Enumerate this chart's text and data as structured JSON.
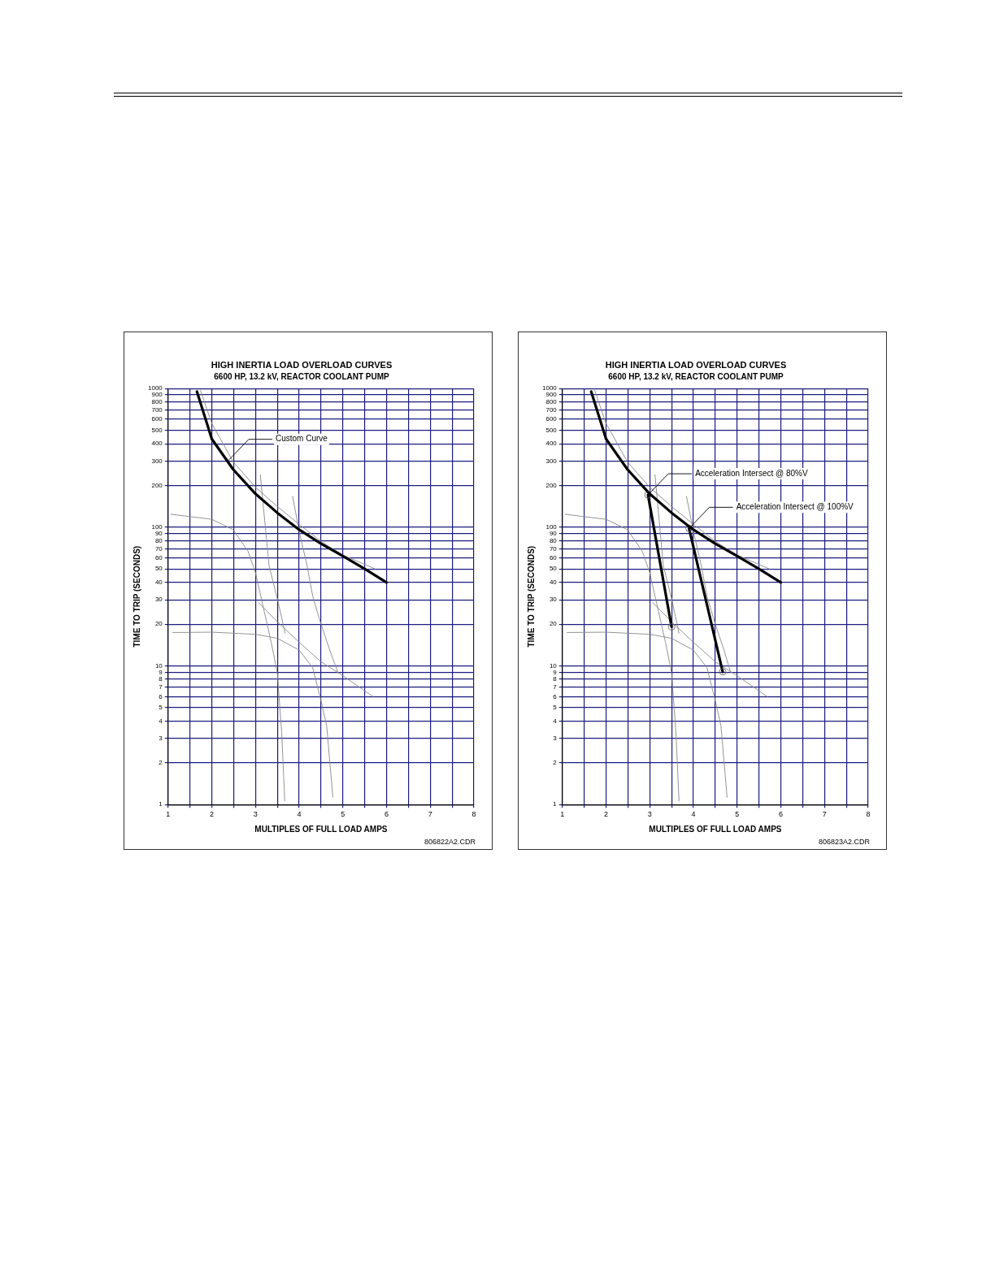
{
  "chart_data": [
    {
      "type": "line",
      "title": "HIGH INERTIA LOAD OVERLOAD CURVES",
      "subtitle": "6600 HP, 13.2 kV, REACTOR COOLANT PUMP",
      "xlabel": "MULTIPLES OF FULL LOAD AMPS",
      "ylabel": "TIME TO TRIP (SECONDS)",
      "log": "y",
      "grid": true,
      "legend": false,
      "line_style": "solid",
      "xlim": [
        1,
        8
      ],
      "xticks": [
        1,
        {
          "value": 1.5,
          "label": null
        },
        2,
        {
          "value": 2.5,
          "label": null
        },
        3,
        {
          "value": 3.5,
          "label": null
        },
        4,
        {
          "value": 4.5,
          "label": null
        },
        5,
        {
          "value": 5.5,
          "label": null
        },
        6,
        {
          "value": 6.5,
          "label": null
        },
        7,
        {
          "value": 7.5,
          "label": null
        },
        8
      ],
      "ylim": [
        1,
        1000
      ],
      "yticks": [
        1,
        2,
        3,
        4,
        5,
        6,
        7,
        8,
        9,
        10,
        20,
        30,
        40,
        50,
        60,
        70,
        80,
        90,
        100,
        200,
        300,
        400,
        500,
        600,
        700,
        800,
        900,
        1000
      ],
      "series": [
        {
          "color": "#000000",
          "marker": "none",
          "x": [
            1.66,
            2.0,
            2.49,
            3.0,
            3.5,
            4.0,
            4.5,
            5.0,
            5.5,
            6.0
          ],
          "values": [
            950,
            433,
            261,
            174,
            127,
            96,
            76,
            62,
            50,
            40
          ]
        },
        {
          "color": "#888888",
          "marker": "none",
          "x": [
            1.74,
            2.0,
            2.49,
            3.0,
            3.5,
            4.0,
            4.5,
            5.0,
            5.74
          ],
          "values": [
            970,
            560,
            296,
            194,
            141,
            105,
            79,
            63,
            50
          ]
        },
        {
          "color": "#888888",
          "marker": "none",
          "x": [
            1.06,
            2.0,
            2.49,
            2.83,
            3.0,
            3.2,
            3.36,
            3.5,
            3.6,
            3.67
          ],
          "values": [
            124,
            114,
            96,
            67,
            47,
            24.7,
            14.8,
            8.9,
            3.3,
            1.06
          ]
        },
        {
          "color": "#888888",
          "marker": "none",
          "x": [
            3.11,
            3.31,
            3.5,
            3.68
          ],
          "values": [
            239,
            53,
            30.5,
            17.2
          ]
        },
        {
          "color": "#888888",
          "marker": "none",
          "x": [
            3.85,
            4.01,
            4.18,
            4.31,
            4.5,
            4.7,
            4.89
          ],
          "values": [
            167,
            90,
            53,
            31.8,
            20,
            13,
            8.9
          ]
        },
        {
          "color": "#888888",
          "marker": "none",
          "x": [
            3.07,
            3.5,
            4.0,
            4.5,
            5.0,
            5.69
          ],
          "values": [
            28.6,
            20.8,
            14.8,
            10.7,
            8.5,
            6.0
          ]
        },
        {
          "color": "#888888",
          "marker": "none",
          "x": [
            1.1,
            2.0,
            3.0,
            3.5,
            4.0,
            4.31,
            4.5,
            4.63,
            4.77
          ],
          "values": [
            17.4,
            17.5,
            16.9,
            15.8,
            13.0,
            9.7,
            5.6,
            3.7,
            1.13
          ]
        }
      ],
      "annotations": [
        {
          "text": "Custom Curve",
          "x": 2.38,
          "y": 303
        },
        "806822A2.CDR"
      ]
    },
    {
      "type": "line",
      "title": "HIGH INERTIA LOAD OVERLOAD CURVES",
      "subtitle": "6600 HP, 13.2 kV, REACTOR COOLANT PUMP",
      "xlabel": "MULTIPLES OF FULL LOAD AMPS",
      "ylabel": "TIME TO TRIP (SECONDS)",
      "log": "y",
      "grid": true,
      "legend": false,
      "line_style": "solid",
      "xlim": [
        1,
        8
      ],
      "xticks": [
        1,
        {
          "value": 1.5,
          "label": null
        },
        2,
        {
          "value": 2.5,
          "label": null
        },
        3,
        {
          "value": 3.5,
          "label": null
        },
        4,
        {
          "value": 4.5,
          "label": null
        },
        5,
        {
          "value": 5.5,
          "label": null
        },
        6,
        {
          "value": 6.5,
          "label": null
        },
        7,
        {
          "value": 7.5,
          "label": null
        },
        8
      ],
      "ylim": [
        1,
        1000
      ],
      "yticks": [
        1,
        2,
        3,
        4,
        5,
        6,
        7,
        8,
        9,
        10,
        20,
        30,
        40,
        50,
        60,
        70,
        80,
        90,
        100,
        200,
        300,
        400,
        500,
        600,
        700,
        800,
        900,
        1000
      ],
      "series": [
        {
          "color": "#000000",
          "marker": "none",
          "x": [
            1.66,
            2.0,
            2.49,
            3.0,
            3.5,
            4.0,
            4.5,
            5.0,
            5.5,
            6.0
          ],
          "values": [
            950,
            433,
            261,
            174,
            127,
            96,
            76,
            62,
            50,
            40
          ]
        },
        {
          "color": "#000000",
          "marker": "circle",
          "x": [
            2.96,
            3.5
          ],
          "values": [
            171,
            19.1
          ]
        },
        {
          "color": "#000000",
          "marker": "circle",
          "x": [
            3.9,
            4.67
          ],
          "values": [
            98,
            9.07
          ]
        },
        {
          "color": "#888888",
          "marker": "none",
          "x": [
            1.74,
            2.0,
            2.49,
            3.0,
            3.5,
            4.0,
            4.5,
            5.0,
            5.74
          ],
          "values": [
            970,
            560,
            296,
            194,
            141,
            105,
            79,
            63,
            50
          ]
        },
        {
          "color": "#888888",
          "marker": "none",
          "x": [
            1.06,
            2.0,
            2.49,
            2.83,
            3.0,
            3.2,
            3.36,
            3.5,
            3.6,
            3.67
          ],
          "values": [
            124,
            114,
            96,
            67,
            47,
            24.7,
            14.8,
            8.9,
            3.3,
            1.06
          ]
        },
        {
          "color": "#888888",
          "marker": "none",
          "x": [
            3.12,
            3.31,
            3.5,
            3.67
          ],
          "values": [
            239,
            53,
            30.5,
            17.2
          ]
        },
        {
          "color": "#888888",
          "marker": "none",
          "x": [
            3.84,
            4.01,
            4.18,
            4.31,
            4.5,
            4.7,
            4.85
          ],
          "values": [
            167,
            90,
            53,
            31.8,
            20,
            13,
            9.0
          ]
        },
        {
          "color": "#888888",
          "marker": "none",
          "x": [
            3.07,
            3.5,
            4.0,
            4.5,
            5.0,
            5.69
          ],
          "values": [
            28.6,
            20.8,
            14.8,
            10.7,
            8.5,
            6.0
          ]
        },
        {
          "color": "#888888",
          "marker": "none",
          "x": [
            1.1,
            2.0,
            3.0,
            3.5,
            4.0,
            4.31,
            4.5,
            4.63,
            4.77
          ],
          "values": [
            17.4,
            17.5,
            16.9,
            15.8,
            13.0,
            9.7,
            5.6,
            3.7,
            1.13
          ]
        }
      ],
      "annotations": [
        {
          "text": "Acceleration Intersect @ 80%V",
          "x": 2.96,
          "y": 171
        },
        {
          "text": "Acceleration Intersect @ 100%V",
          "x": 3.9,
          "y": 98
        },
        "806823A2.CDR"
      ]
    }
  ]
}
